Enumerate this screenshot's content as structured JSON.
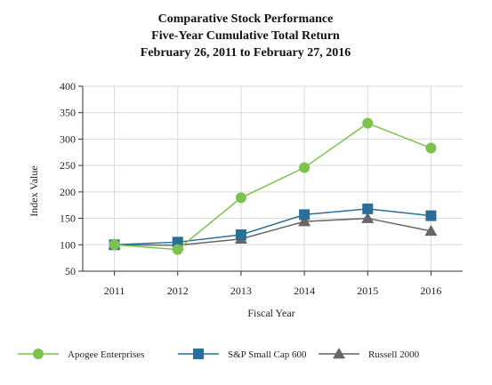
{
  "chart_data": {
    "type": "line",
    "title": "Comparative Stock Performance",
    "subtitle_lines": [
      "Five-Year Cumulative Total Return",
      "February 26, 2011 to February 27, 2016"
    ],
    "xlabel": "Fiscal Year",
    "ylabel": "Index Value",
    "categories": [
      "2011",
      "2012",
      "2013",
      "2014",
      "2015",
      "2016"
    ],
    "ylim": [
      50,
      400
    ],
    "yticks": [
      50,
      100,
      150,
      200,
      250,
      300,
      350,
      400
    ],
    "grid": true,
    "legend_position": "bottom",
    "series": [
      {
        "name": "Apogee Enterprises",
        "values": [
          100,
          91,
          189,
          246,
          330,
          283
        ],
        "color": "#7dc24b",
        "marker": "circle"
      },
      {
        "name": "S&P Small Cap 600",
        "values": [
          100,
          105,
          119,
          157,
          168,
          155
        ],
        "color": "#2a6f97",
        "marker": "square"
      },
      {
        "name": "Russell 2000",
        "values": [
          100,
          99,
          111,
          144,
          150,
          126
        ],
        "color": "#666666",
        "marker": "triangle"
      }
    ]
  }
}
